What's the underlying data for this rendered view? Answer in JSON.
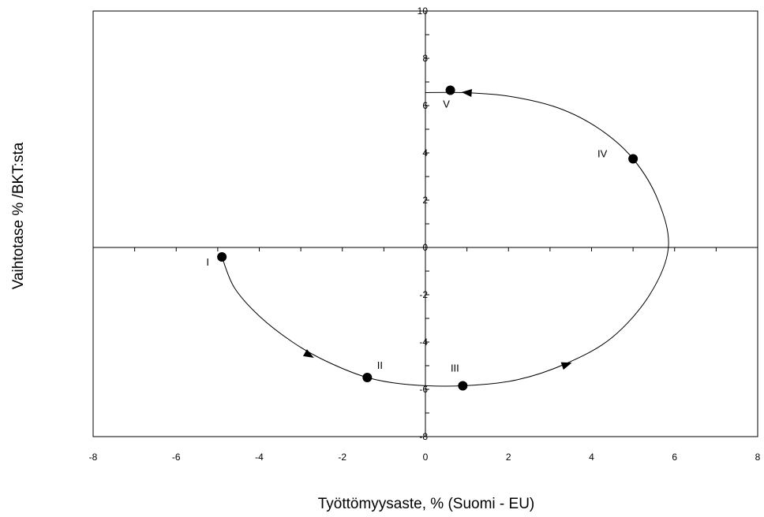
{
  "chart_data": {
    "type": "scatter",
    "title": "",
    "xlabel": "Työttömyysaste, % (Suomi - EU)",
    "ylabel": "Vaihtotase % /BKT:sta",
    "xlim": [
      -8,
      8
    ],
    "ylim": [
      -8,
      10
    ],
    "x_ticks": [
      -8,
      -6,
      -4,
      -2,
      0,
      2,
      4,
      6,
      8
    ],
    "y_ticks": [
      -8,
      -6,
      -4,
      -2,
      0,
      2,
      4,
      6,
      8,
      10
    ],
    "x_tick_labels": [
      "-8",
      "-6",
      "-4",
      "-2",
      "0",
      "2",
      "4",
      "6",
      "8"
    ],
    "y_tick_labels": [
      "-8",
      "-6",
      "-4",
      "-2",
      "0",
      "2",
      "4",
      "6",
      "8",
      "10"
    ],
    "grid": false,
    "legend": "none",
    "points": [
      {
        "label": "I",
        "x": -4.9,
        "y": -0.4
      },
      {
        "label": "II",
        "x": -1.4,
        "y": -5.5
      },
      {
        "label": "III",
        "x": 0.9,
        "y": -5.85
      },
      {
        "label": "IV",
        "x": 5.0,
        "y": 3.75
      },
      {
        "label": "V",
        "x": 0.6,
        "y": 6.65
      }
    ],
    "curve": {
      "description_order": [
        "I",
        "II",
        "III",
        "IV",
        "V"
      ],
      "path": [
        [
          -4.9,
          -0.4
        ],
        [
          -4.6,
          -1.7
        ],
        [
          -4.0,
          -2.9
        ],
        [
          -3.2,
          -4.0
        ],
        [
          -2.4,
          -4.8
        ],
        [
          -1.4,
          -5.5
        ],
        [
          -0.4,
          -5.8
        ],
        [
          0.9,
          -5.85
        ],
        [
          2.2,
          -5.6
        ],
        [
          3.4,
          -4.9
        ],
        [
          4.5,
          -3.8
        ],
        [
          5.4,
          -2.0
        ],
        [
          5.85,
          0.0
        ],
        [
          5.6,
          2.0
        ],
        [
          5.0,
          3.75
        ],
        [
          4.2,
          5.0
        ],
        [
          3.2,
          5.9
        ],
        [
          2.0,
          6.4
        ],
        [
          0.9,
          6.55
        ],
        [
          0.0,
          6.55
        ]
      ],
      "arrows": [
        {
          "x": -2.8,
          "y": -4.55
        },
        {
          "x": 3.4,
          "y": -4.95
        },
        {
          "x": 1.0,
          "y": 6.55
        }
      ]
    },
    "colors": {
      "line": "#000000",
      "marker": "#000000",
      "background": "#ffffff"
    }
  }
}
